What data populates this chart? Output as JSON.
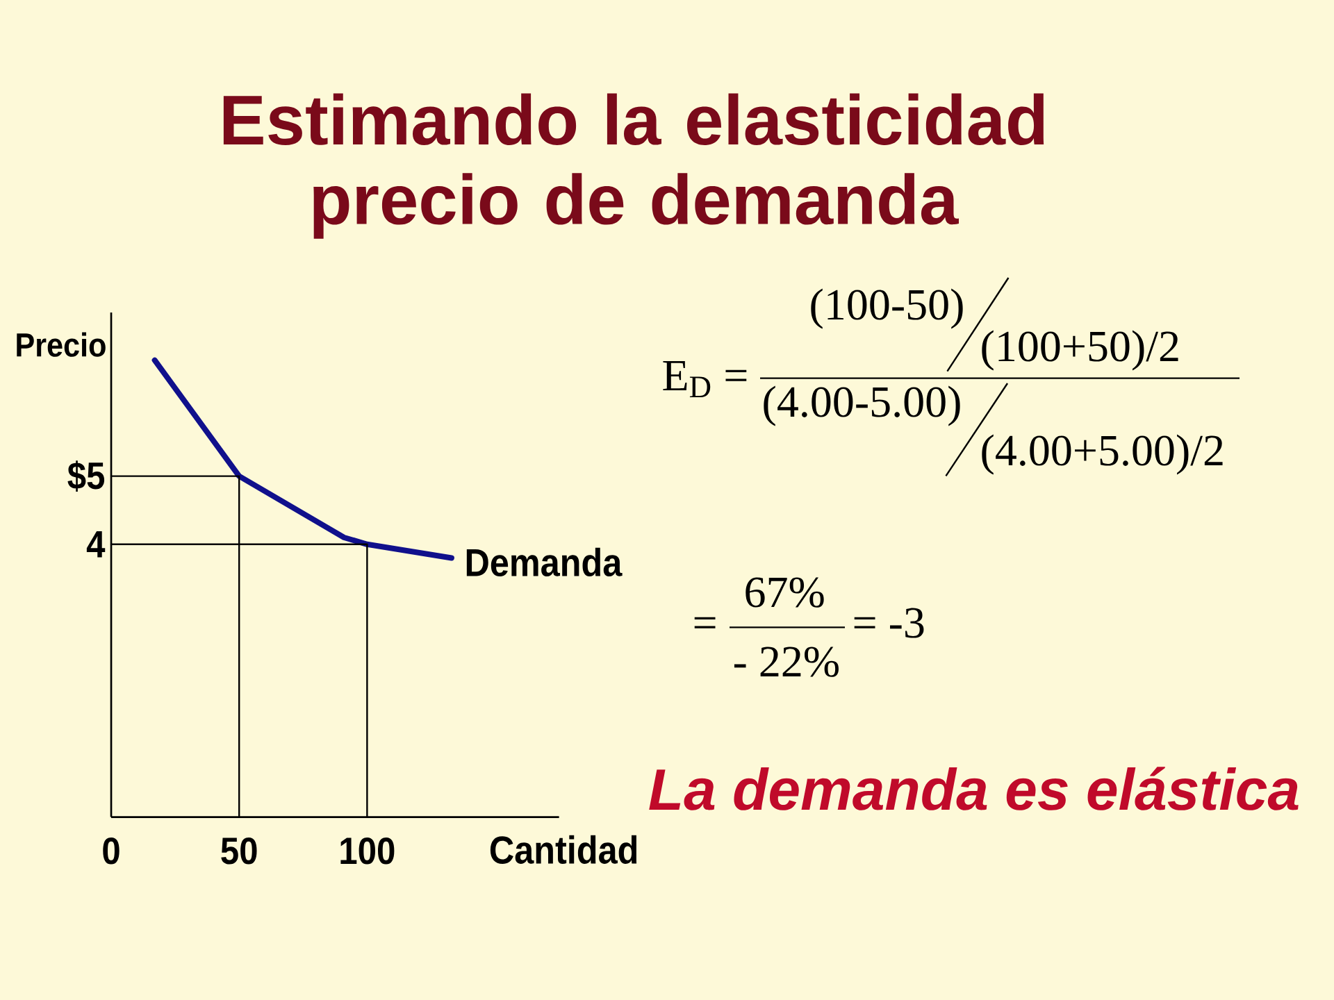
{
  "chart_data": {
    "type": "line",
    "title": "Estimando la elasticidad precio de demanda",
    "xlabel": "Cantidad",
    "ylabel": "Precio",
    "xlim": [
      0,
      175
    ],
    "ylim": [
      0,
      7.4
    ],
    "xticks": [
      0,
      50,
      100
    ],
    "yticks": [
      4,
      {
        "value": 5,
        "label": "$5"
      }
    ],
    "series": [
      {
        "name": "Demanda",
        "color": "#10108c",
        "x": [
          17,
          50,
          91,
          100,
          133
        ],
        "values": [
          6.7,
          5,
          4.1,
          4,
          3.8
        ]
      },
      {
        "color": "#000000",
        "x": [
          0,
          50,
          50
        ],
        "values": [
          5,
          5,
          0
        ]
      },
      {
        "color": "#000000",
        "x": [
          0,
          100,
          100
        ],
        "values": [
          4,
          4,
          0
        ]
      }
    ],
    "annotations": [
      "E$_{D}$ =",
      "(100-50)",
      "(100+50)/2",
      "(4.00-5.00)",
      "(4.00+5.00)/2",
      "=",
      "67%",
      "- 22%",
      "= -3",
      "La demanda es elástica"
    ]
  }
}
